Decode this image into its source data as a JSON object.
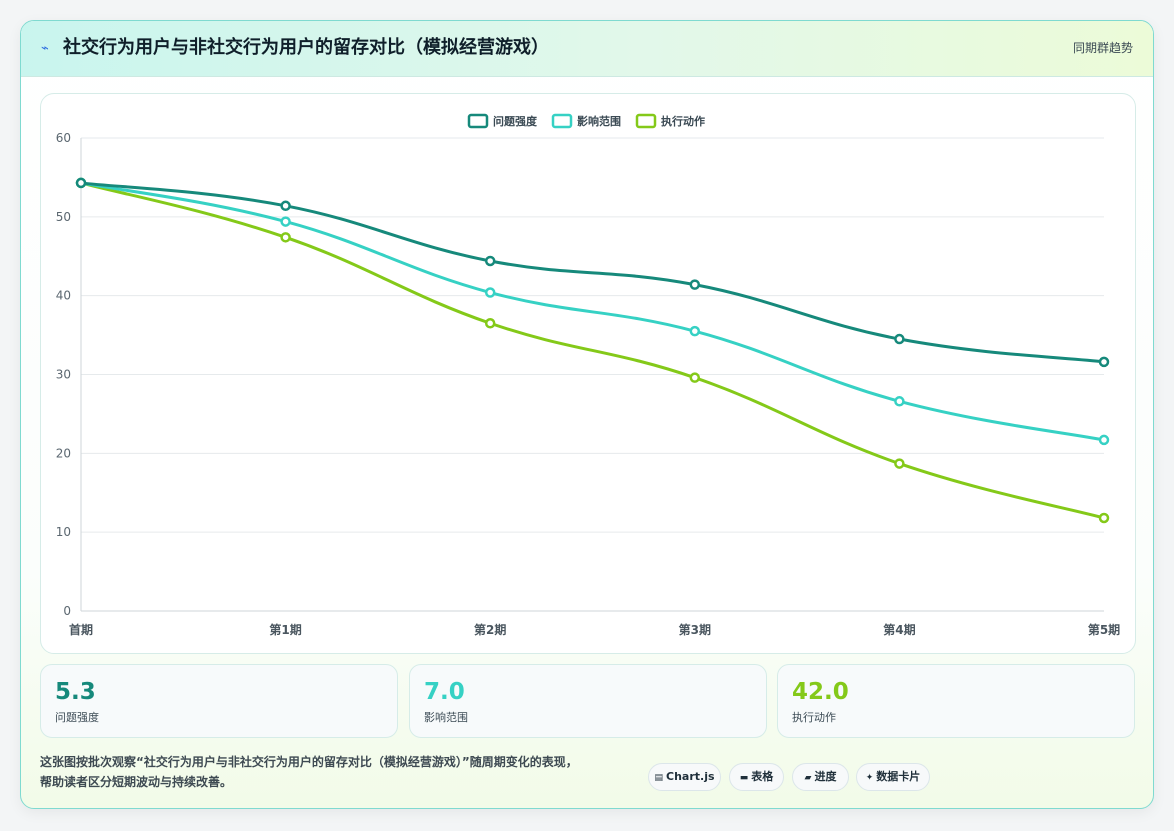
{
  "header": {
    "icon": "trend-line-icon",
    "title": "社交行为用户与非社交行为用户的留存对比（模拟经营游戏）",
    "link": "同期群趋势"
  },
  "chart_data": {
    "type": "line",
    "categories": [
      "首期",
      "第1期",
      "第2期",
      "第3期",
      "第4期",
      "第5期"
    ],
    "series": [
      {
        "name": "问题强度",
        "color": "#16897b",
        "values": [
          54.3,
          51.4,
          44.4,
          41.4,
          34.5,
          31.6
        ]
      },
      {
        "name": "影响范围",
        "color": "#36d1c4",
        "values": [
          54.3,
          49.4,
          40.4,
          35.5,
          26.6,
          21.7
        ]
      },
      {
        "name": "执行动作",
        "color": "#84c919",
        "values": [
          54.3,
          47.4,
          36.5,
          29.6,
          18.7,
          11.8
        ]
      }
    ],
    "ylim": [
      0,
      60
    ],
    "yticks": [
      0,
      10,
      20,
      30,
      40,
      50,
      60
    ],
    "grid": true,
    "legend": "top-center",
    "smooth": true
  },
  "stats": [
    {
      "value": "5.3",
      "label": "问题强度",
      "color": "#16897b"
    },
    {
      "value": "7.0",
      "label": "影响范围",
      "color": "#36d1c4"
    },
    {
      "value": "42.0",
      "label": "执行动作",
      "color": "#84c919"
    }
  ],
  "footer": {
    "line1": "这张图按批次观察“社交行为用户与非社交行为用户的留存对比（模拟经营游戏）”随周期变化的表现，",
    "line2": "帮助读者区分短期波动与持续改善。"
  },
  "chips": [
    {
      "icon": "chart-icon",
      "label": "Chart.js"
    },
    {
      "icon": "table-icon",
      "label": "表格"
    },
    {
      "icon": "folder-icon",
      "label": "进度"
    },
    {
      "icon": "sparkle-icon",
      "label": "数据卡片"
    }
  ]
}
